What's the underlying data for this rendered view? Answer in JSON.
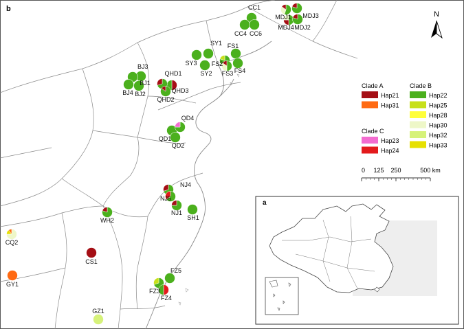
{
  "panel_main_label": "b",
  "panel_inset_label": "a",
  "north_label": "N",
  "legend": {
    "clade_a": {
      "title": "Clade A",
      "items": [
        {
          "label": "Hap21",
          "color": "#a50f15"
        },
        {
          "label": "Hap31",
          "color": "#ff6a13"
        }
      ]
    },
    "clade_b": {
      "title": "Clade B",
      "items": [
        {
          "label": "Hap22",
          "color": "#4bb01d"
        },
        {
          "label": "Hap25",
          "color": "#c7e01a"
        },
        {
          "label": "Hap28",
          "color": "#ffff3a"
        },
        {
          "label": "Hap30",
          "color": "#eef7c8"
        },
        {
          "label": "Hap32",
          "color": "#d6f27a"
        },
        {
          "label": "Hap33",
          "color": "#e6e000"
        }
      ]
    },
    "clade_c": {
      "title": "Clade C",
      "items": [
        {
          "label": "Hap23",
          "color": "#f36cd0"
        },
        {
          "label": "Hap24",
          "color": "#e31a1c"
        }
      ]
    }
  },
  "scale_bar": {
    "ticks": [
      "0",
      "125",
      "250",
      "500 km"
    ]
  },
  "colors": {
    "Hap21": "#a50f15",
    "Hap31": "#ff6a13",
    "Hap22": "#4bb01d",
    "Hap25": "#c7e01a",
    "Hap28": "#ffff3a",
    "Hap30": "#eef7c8",
    "Hap32": "#d6f27a",
    "Hap33": "#e6e000",
    "Hap23": "#f36cd0",
    "Hap24": "#e31a1c"
  },
  "sites": [
    {
      "name": "CC1",
      "hap": [
        [
          "Hap22",
          1
        ]
      ]
    },
    {
      "name": "CC4",
      "hap": [
        [
          "Hap22",
          1
        ]
      ]
    },
    {
      "name": "CC6",
      "hap": [
        [
          "Hap22",
          1
        ]
      ]
    },
    {
      "name": "MDJ1",
      "hap": [
        [
          "Hap22",
          0.55
        ],
        [
          "Hap30",
          0.3
        ],
        [
          "Hap21",
          0.15
        ]
      ]
    },
    {
      "name": "MDJ3",
      "hap": [
        [
          "Hap22",
          0.8
        ],
        [
          "Hap21",
          0.2
        ]
      ]
    },
    {
      "name": "MDJ4",
      "hap": [
        [
          "Hap22",
          0.5
        ],
        [
          "Hap21",
          0.25
        ],
        [
          "Hap30",
          0.25
        ]
      ]
    },
    {
      "name": "MDJ2",
      "hap": [
        [
          "Hap22",
          0.8
        ],
        [
          "Hap21",
          0.2
        ]
      ]
    },
    {
      "name": "SY1",
      "hap": [
        [
          "Hap22",
          1
        ]
      ]
    },
    {
      "name": "FS1",
      "hap": [
        [
          "Hap22",
          1
        ]
      ]
    },
    {
      "name": "SY3",
      "hap": [
        [
          "Hap22",
          1
        ]
      ]
    },
    {
      "name": "FS2",
      "hap": [
        [
          "Hap22",
          0.8
        ],
        [
          "Hap25",
          0.2
        ]
      ]
    },
    {
      "name": "SY2",
      "hap": [
        [
          "Hap22",
          1
        ]
      ]
    },
    {
      "name": "FS3",
      "hap": [
        [
          "Hap22",
          0.5
        ],
        [
          "Hap30",
          0.35
        ],
        [
          "Hap21",
          0.15
        ]
      ]
    },
    {
      "name": "FS4",
      "hap": [
        [
          "Hap22",
          1
        ]
      ]
    },
    {
      "name": "BJ3",
      "hap": [
        [
          "Hap22",
          1
        ]
      ]
    },
    {
      "name": "BJ1",
      "hap": [
        [
          "Hap22",
          1
        ]
      ]
    },
    {
      "name": "BJ4",
      "hap": [
        [
          "Hap22",
          1
        ]
      ]
    },
    {
      "name": "BJ2",
      "hap": [
        [
          "Hap22",
          1
        ]
      ]
    },
    {
      "name": "QHD1",
      "hap": [
        [
          "Hap21",
          0.5
        ],
        [
          "Hap22",
          0.5
        ]
      ]
    },
    {
      "name": "QHD3",
      "hap": [
        [
          "Hap22",
          0.7
        ],
        [
          "Hap21",
          0.3
        ]
      ]
    },
    {
      "name": "QHD2",
      "hap": [
        [
          "Hap22",
          0.85
        ],
        [
          "Hap21",
          0.15
        ]
      ]
    },
    {
      "name": "QD1",
      "hap": [
        [
          "Hap22",
          1
        ]
      ]
    },
    {
      "name": "QD4",
      "hap": [
        [
          "Hap22",
          0.75
        ],
        [
          "Hap23",
          0.25
        ]
      ]
    },
    {
      "name": "QD2",
      "hap": [
        [
          "Hap22",
          1
        ]
      ]
    },
    {
      "name": "NJ4",
      "hap": [
        [
          "Hap22",
          0.7
        ],
        [
          "Hap21",
          0.3
        ]
      ]
    },
    {
      "name": "NJ5",
      "hap": [
        [
          "Hap22",
          0.65
        ],
        [
          "Hap24",
          0.35
        ]
      ]
    },
    {
      "name": "NJ1",
      "hap": [
        [
          "Hap22",
          0.75
        ],
        [
          "Hap21",
          0.25
        ]
      ]
    },
    {
      "name": "SH1",
      "hap": [
        [
          "Hap22",
          1
        ]
      ]
    },
    {
      "name": "WH2",
      "hap": [
        [
          "Hap22",
          0.8
        ],
        [
          "Hap21",
          0.2
        ]
      ]
    },
    {
      "name": "CQ2",
      "hap": [
        [
          "Hap30",
          0.75
        ],
        [
          "Hap33",
          0.15
        ],
        [
          "Hap31",
          0.1
        ]
      ]
    },
    {
      "name": "CS1",
      "hap": [
        [
          "Hap21",
          1
        ]
      ]
    },
    {
      "name": "GY1",
      "hap": [
        [
          "Hap31",
          1
        ]
      ]
    },
    {
      "name": "FZ5",
      "hap": [
        [
          "Hap22",
          1
        ]
      ]
    },
    {
      "name": "FZ3",
      "hap": [
        [
          "Hap22",
          0.7
        ],
        [
          "Hap25",
          0.3
        ]
      ]
    },
    {
      "name": "FZ4",
      "hap": [
        [
          "Hap24",
          0.5
        ],
        [
          "Hap22",
          0.5
        ]
      ]
    },
    {
      "name": "GZ1",
      "hap": [
        [
          "Hap32",
          1
        ]
      ]
    }
  ]
}
